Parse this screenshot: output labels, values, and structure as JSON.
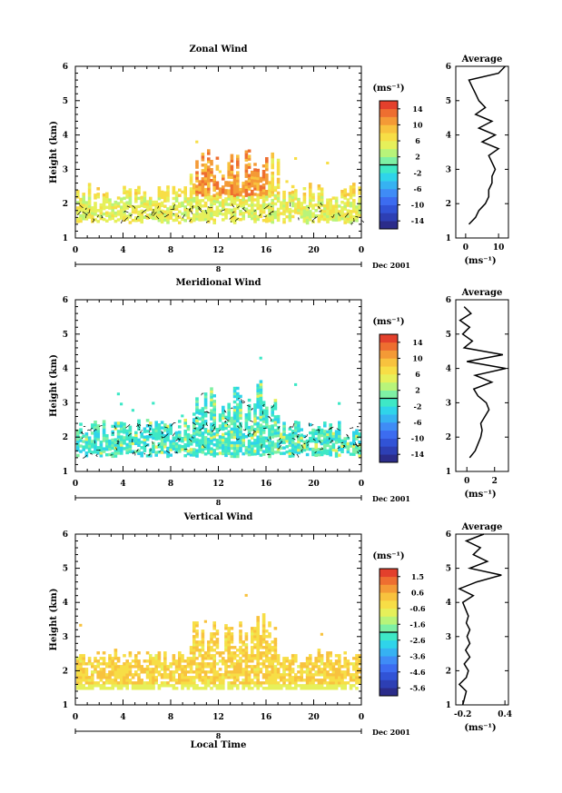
{
  "x_axis": {
    "ticks": [
      "0",
      "4",
      "8",
      "12",
      "16",
      "20",
      "0"
    ],
    "date_tick": "8",
    "month_label": "Dec 2001",
    "xlabel": "Local Time"
  },
  "panel_ylabel": "Height (km)",
  "avg_title": "Average",
  "colorbar_unit": "(ms⁻¹)",
  "avg_xlabel": "(ms⁻¹)",
  "palette": [
    "#2b2c8a",
    "#2d3fb4",
    "#3153d6",
    "#3c6cf0",
    "#3f8cf6",
    "#36b2f2",
    "#2fd4ea",
    "#3ee8c6",
    "#7ef0a4",
    "#b8f47a",
    "#e6f05a",
    "#f7de46",
    "#f8c23e",
    "#f49a36",
    "#ee6e30",
    "#e3402c"
  ],
  "chart_data": [
    {
      "type": "heatmap",
      "title": "Zonal Wind",
      "ylabel": "Height (km)",
      "ylim": [
        1,
        6
      ],
      "yticks": [
        "1",
        "2",
        "3",
        "4",
        "5",
        "6"
      ],
      "xlim_hours": [
        0,
        24
      ],
      "colorbar": {
        "unit": "(ms⁻¹)",
        "min": -16,
        "max": 16,
        "ticks": [
          "14",
          "10",
          "6",
          "2",
          "-2",
          "-6",
          "-10",
          "-14"
        ]
      },
      "profile": {
        "title": "Average",
        "xlabel": "(ms⁻¹)",
        "xticks": [
          "0",
          "10"
        ],
        "xlim": [
          -3,
          13
        ],
        "height_km": [
          1.4,
          1.6,
          1.8,
          2.0,
          2.2,
          2.4,
          2.6,
          2.8,
          3.0,
          3.2,
          3.4,
          3.6,
          3.8,
          4.0,
          4.2,
          4.4,
          4.6,
          4.8,
          5.0,
          5.2,
          5.4,
          5.6,
          5.8,
          6.0
        ],
        "values": [
          1,
          3,
          4,
          6,
          7,
          7,
          8,
          8,
          9,
          8,
          7,
          10,
          5,
          9,
          4,
          8,
          3,
          6,
          4,
          3,
          2,
          1,
          10,
          12
        ]
      }
    },
    {
      "type": "heatmap",
      "title": "Meridional Wind",
      "ylabel": "Height (km)",
      "ylim": [
        1,
        6
      ],
      "yticks": [
        "1",
        "2",
        "3",
        "4",
        "5",
        "6"
      ],
      "xlim_hours": [
        0,
        24
      ],
      "colorbar": {
        "unit": "(ms⁻¹)",
        "min": -16,
        "max": 16,
        "ticks": [
          "14",
          "10",
          "6",
          "2",
          "-2",
          "-6",
          "-10",
          "-14"
        ]
      },
      "profile": {
        "title": "Average",
        "xlabel": "(ms⁻¹)",
        "xticks": [
          "0",
          "2"
        ],
        "xlim": [
          -0.8,
          3.0
        ],
        "height_km": [
          1.4,
          1.6,
          1.8,
          2.0,
          2.2,
          2.4,
          2.6,
          2.8,
          3.0,
          3.2,
          3.4,
          3.6,
          3.8,
          4.0,
          4.2,
          4.4,
          4.6,
          4.8,
          5.0,
          5.2,
          5.4,
          5.6,
          5.8
        ],
        "values": [
          0.2,
          0.6,
          0.8,
          1.0,
          1.1,
          1.0,
          1.3,
          1.6,
          1.4,
          0.8,
          0.5,
          1.8,
          0.6,
          2.8,
          0.0,
          2.6,
          -0.2,
          0.4,
          -0.3,
          0.2,
          -0.5,
          0.3,
          -0.2
        ]
      }
    },
    {
      "type": "heatmap",
      "title": "Vertical Wind",
      "ylabel": "Height (km)",
      "ylim": [
        1,
        6
      ],
      "yticks": [
        "1",
        "2",
        "3",
        "4",
        "5",
        "6"
      ],
      "xlim_hours": [
        0,
        24
      ],
      "colorbar": {
        "unit": "(ms⁻¹)",
        "min": -6.0,
        "max": 2.0,
        "ticks": [
          "1.5",
          "0.6",
          "-0.6",
          "-1.6",
          "-2.6",
          "-3.6",
          "-4.6",
          "-5.6"
        ]
      },
      "profile": {
        "title": "Average",
        "xlabel": "(ms⁻¹)",
        "xticks": [
          "-0.2",
          "0.4"
        ],
        "xlim": [
          -0.3,
          0.45
        ],
        "height_km": [
          1.0,
          1.4,
          1.6,
          1.8,
          2.0,
          2.2,
          2.4,
          2.6,
          2.8,
          3.0,
          3.2,
          3.4,
          3.6,
          3.8,
          4.0,
          4.2,
          4.4,
          4.6,
          4.8,
          5.0,
          5.2,
          5.4,
          5.6,
          5.8,
          6.0
        ],
        "values": [
          -0.2,
          -0.15,
          -0.25,
          -0.15,
          -0.12,
          -0.18,
          -0.1,
          -0.16,
          -0.1,
          -0.14,
          -0.1,
          -0.15,
          -0.12,
          -0.16,
          -0.2,
          -0.05,
          -0.25,
          0.0,
          0.35,
          -0.1,
          0.15,
          -0.05,
          0.05,
          -0.15,
          0.1
        ]
      }
    }
  ]
}
